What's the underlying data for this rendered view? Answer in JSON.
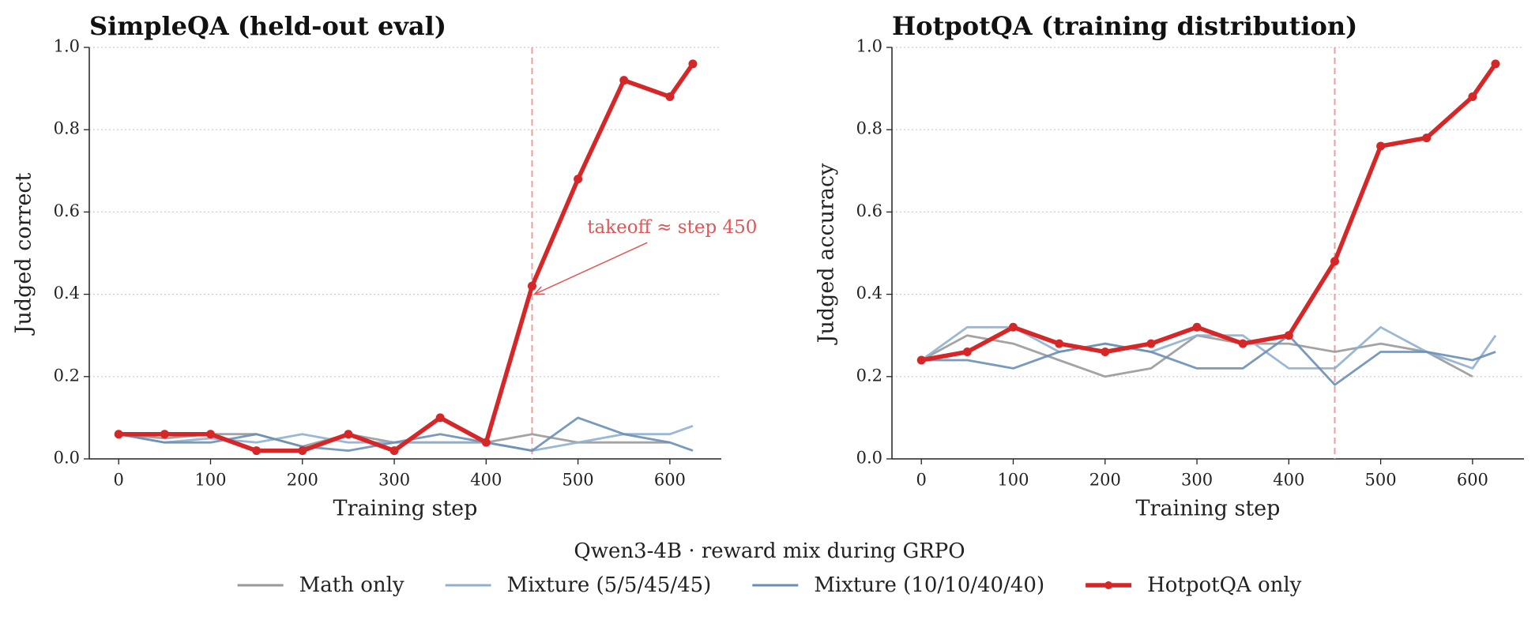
{
  "chart_data": [
    {
      "type": "line",
      "title": "SimpleQA  (held-out eval)",
      "xlabel": "Training step",
      "ylabel": "Judged correct",
      "x": [
        0,
        50,
        100,
        150,
        200,
        250,
        300,
        350,
        400,
        450,
        500,
        550,
        600,
        625
      ],
      "xlim": [
        -32,
        656
      ],
      "ylim": [
        0,
        1.0
      ],
      "xticks": [
        0,
        100,
        200,
        300,
        400,
        500,
        600
      ],
      "yticks": [
        {
          "value": 0,
          "label": "0.0"
        },
        {
          "value": 0.2,
          "label": "0.2"
        },
        {
          "value": 0.4,
          "label": "0.4"
        },
        {
          "value": 0.6,
          "label": "0.6"
        },
        {
          "value": 0.8,
          "label": "0.8"
        },
        {
          "value": 1.0,
          "label": "1.0"
        }
      ],
      "grid": true,
      "vline": 450,
      "annotation": {
        "text": "takeoff ≈ step 450",
        "xy": [
          450,
          0.4
        ],
        "xytext": [
          510,
          0.56
        ],
        "color": "#e05555"
      },
      "series": [
        {
          "name": "Math only",
          "color": "#999999",
          "values": [
            0.06,
            0.05,
            0.06,
            0.06,
            0.03,
            0.06,
            0.04,
            0.04,
            0.04,
            0.06,
            0.04,
            0.04,
            0.04,
            null
          ]
        },
        {
          "name": "Mixture (5/5/45/45)",
          "color": "#8fb0d0",
          "values": [
            0.06,
            0.04,
            0.05,
            0.04,
            0.06,
            0.04,
            0.04,
            0.04,
            0.04,
            0.02,
            0.04,
            0.06,
            0.06,
            0.08
          ]
        },
        {
          "name": "Mixture (10/10/40/40)",
          "color": "#6a8fb5",
          "values": [
            0.06,
            0.04,
            0.04,
            0.06,
            0.03,
            0.02,
            0.04,
            0.06,
            0.04,
            0.02,
            0.1,
            0.06,
            0.04,
            0.02
          ]
        },
        {
          "name": "HotpotQA only",
          "color": "#d62728",
          "values": [
            0.06,
            0.06,
            0.06,
            0.02,
            0.02,
            0.06,
            0.02,
            0.1,
            0.04,
            0.42,
            0.68,
            0.92,
            0.88,
            0.96
          ]
        }
      ]
    },
    {
      "type": "line",
      "title": "HotpotQA  (training distribution)",
      "xlabel": "Training step",
      "ylabel": "Judged accuracy",
      "x": [
        0,
        50,
        100,
        150,
        200,
        250,
        300,
        350,
        400,
        450,
        500,
        550,
        600,
        625
      ],
      "xlim": [
        -32,
        656
      ],
      "ylim": [
        0,
        1.0
      ],
      "xticks": [
        0,
        100,
        200,
        300,
        400,
        500,
        600
      ],
      "yticks": [
        {
          "value": 0,
          "label": "0.0"
        },
        {
          "value": 0.2,
          "label": "0.2"
        },
        {
          "value": 0.4,
          "label": "0.4"
        },
        {
          "value": 0.6,
          "label": "0.6"
        },
        {
          "value": 0.8,
          "label": "0.8"
        },
        {
          "value": 1.0,
          "label": "1.0"
        }
      ],
      "grid": true,
      "vline": 450,
      "series": [
        {
          "name": "Math only",
          "color": "#999999",
          "values": [
            0.24,
            0.3,
            0.28,
            0.24,
            0.2,
            0.22,
            0.3,
            0.28,
            0.28,
            0.26,
            0.28,
            0.26,
            0.2,
            null
          ]
        },
        {
          "name": "Mixture (5/5/45/45)",
          "color": "#8fb0d0",
          "values": [
            0.24,
            0.32,
            0.32,
            0.26,
            0.28,
            0.26,
            0.3,
            0.3,
            0.22,
            0.22,
            0.32,
            0.26,
            0.22,
            0.3
          ]
        },
        {
          "name": "Mixture (10/10/40/40)",
          "color": "#6a8fb5",
          "values": [
            0.24,
            0.24,
            0.22,
            0.26,
            0.28,
            0.26,
            0.22,
            0.22,
            0.3,
            0.18,
            0.26,
            0.26,
            0.24,
            0.26
          ]
        },
        {
          "name": "HotpotQA only",
          "color": "#d62728",
          "values": [
            0.24,
            0.26,
            0.32,
            0.28,
            0.26,
            0.28,
            0.32,
            0.28,
            0.3,
            0.48,
            0.76,
            0.78,
            0.88,
            0.96
          ]
        }
      ]
    }
  ],
  "legend": {
    "title": "Qwen3-4B  ·  reward mix during GRPO",
    "position": "lower center"
  }
}
